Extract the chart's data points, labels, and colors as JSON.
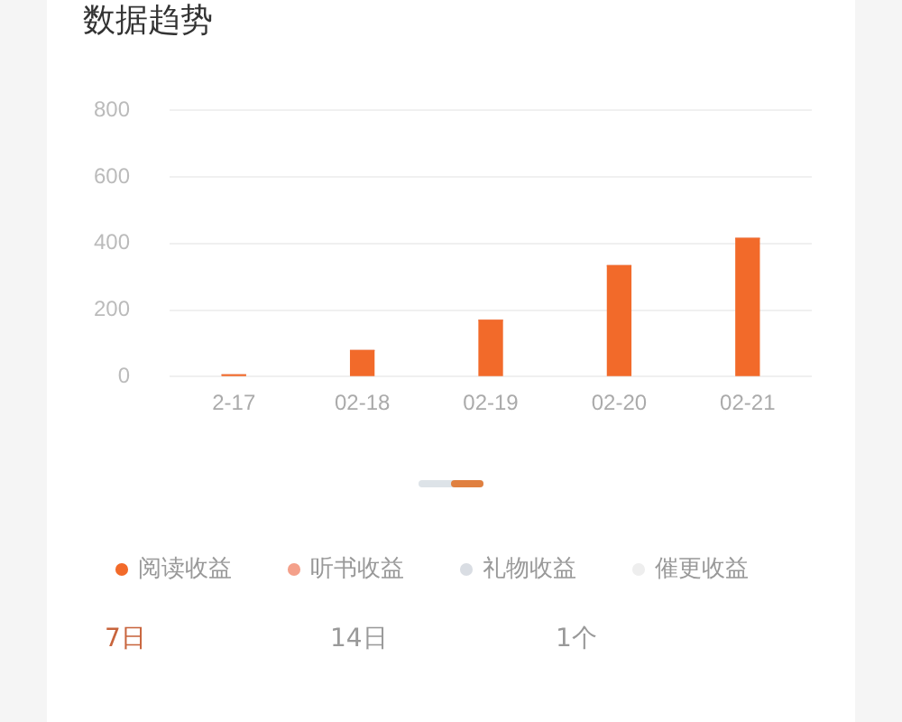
{
  "chart_data": {
    "type": "bar",
    "title": "数据趋势",
    "categories": [
      "2-17",
      "02-18",
      "02-19",
      "02-20",
      "02-21"
    ],
    "series": [
      {
        "name": "阅读收益",
        "color": "#f26a2a",
        "values": [
          5,
          78,
          169,
          333,
          415
        ]
      },
      {
        "name": "听书收益",
        "color": "#f4a08a",
        "values": [
          0,
          0,
          0,
          0,
          0
        ]
      },
      {
        "name": "礼物收益",
        "color": "#d9dde3",
        "values": [
          0,
          0,
          0,
          0,
          0
        ]
      },
      {
        "name": "催更收益",
        "color": "#eeeeee",
        "values": [
          0,
          0,
          0,
          0,
          0
        ]
      }
    ],
    "stacked": true,
    "ylim": [
      0,
      800
    ],
    "yticks": [
      0,
      200,
      400,
      600,
      800
    ],
    "grid": "y",
    "legend": "bottom",
    "annotations": [
      "7日",
      "14日",
      "1个"
    ]
  }
}
